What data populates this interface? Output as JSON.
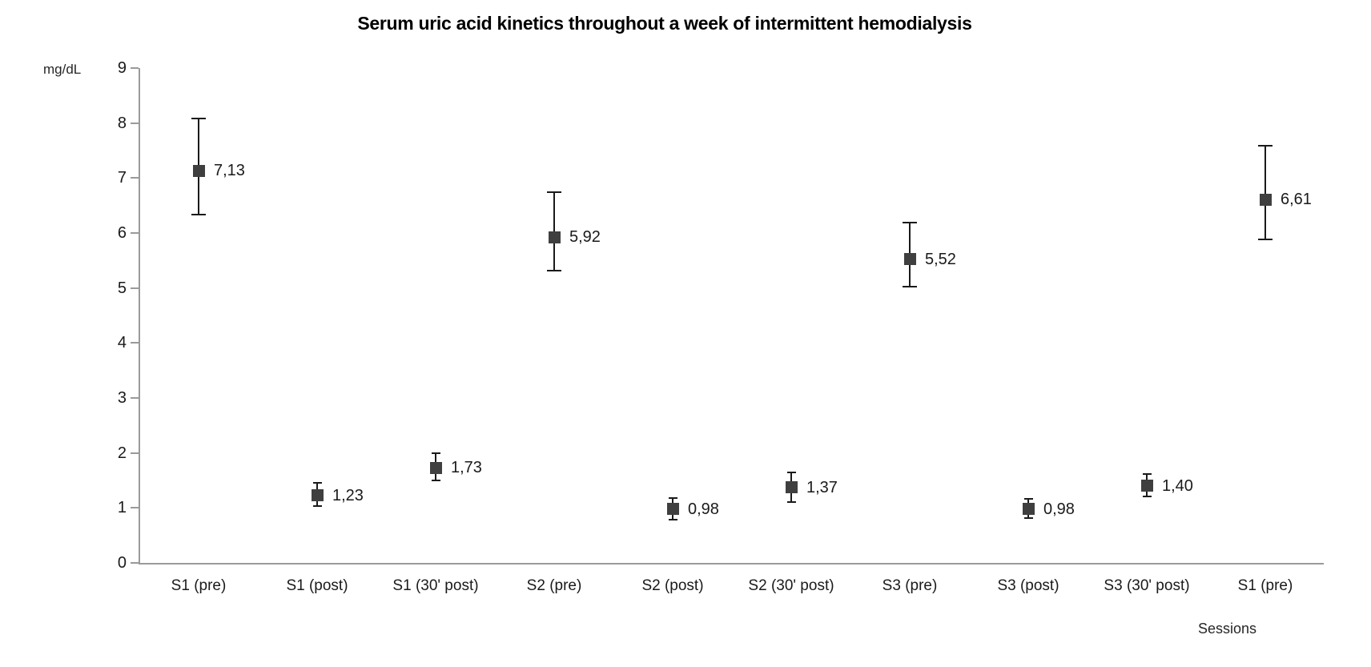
{
  "window": {
    "kind": "excel-style-chart",
    "background": "#ffffff"
  },
  "colors": {
    "marker": "#3f3f3f",
    "error_bar": "#1a1a1a",
    "axis_line": "#9a9a9a",
    "text": "#1a1a1a",
    "title_text": "#000000"
  },
  "chart_data": {
    "type": "scatter",
    "title": "Serum uric acid kinetics throughout a week of intermittent hemodialysis",
    "ylabel": "mg/dL",
    "xlabel": "Sessions",
    "ylim": [
      0,
      9
    ],
    "yticks": [
      0,
      1,
      2,
      3,
      4,
      5,
      6,
      7,
      8,
      9
    ],
    "grid": false,
    "legend": false,
    "marker_shape": "square",
    "decimal_separator": ",",
    "categories": [
      "S1 (pre)",
      "S1 (post)",
      "S1 (30' post)",
      "S2 (pre)",
      "S2 (post)",
      "S2 (30' post)",
      "S3 (pre)",
      "S3 (post)",
      "S3 (30' post)",
      "S1 (pre)"
    ],
    "values": [
      7.13,
      1.23,
      1.73,
      5.92,
      0.98,
      1.37,
      5.52,
      0.98,
      1.4,
      6.61
    ],
    "data_labels": [
      "7,13",
      "1,23",
      "1,73",
      "5,92",
      "0,98",
      "1,37",
      "5,52",
      "0,98",
      "1,40",
      "6,61"
    ],
    "error_upper": [
      8.08,
      1.45,
      1.99,
      6.74,
      1.18,
      1.64,
      6.19,
      1.16,
      1.61,
      7.59
    ],
    "error_lower": [
      6.33,
      1.03,
      1.5,
      5.32,
      0.79,
      1.1,
      5.03,
      0.82,
      1.21,
      5.89
    ]
  }
}
